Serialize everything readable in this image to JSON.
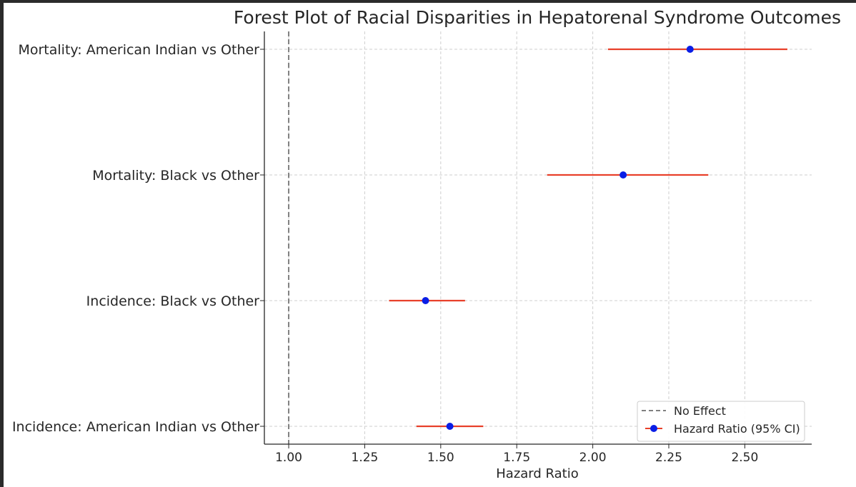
{
  "chart_data": {
    "type": "scatter",
    "title": "Forest Plot of Racial Disparities in Hepatorenal Syndrome Outcomes",
    "xlabel": "Hazard Ratio",
    "ylabel": "",
    "xlim": [
      0.92,
      2.72
    ],
    "xticks": [
      "1.00",
      "1.25",
      "1.50",
      "1.75",
      "2.00",
      "2.25",
      "2.50"
    ],
    "xtick_values": [
      1.0,
      1.25,
      1.5,
      1.75,
      2.0,
      2.25,
      2.5
    ],
    "reference_line": {
      "x": 1.0,
      "style": "dashed",
      "color": "#808080",
      "label": "No Effect"
    },
    "grid": true,
    "legend_position": "lower right",
    "point_color": "#0a1ee6",
    "ci_color": "#e8402a",
    "series": [
      {
        "name": "Hazard Ratio (95% CI)",
        "points": [
          {
            "label": "Mortality: American Indian vs Other",
            "hr": 2.32,
            "lower": 2.05,
            "upper": 2.64
          },
          {
            "label": "Mortality: Black vs Other",
            "hr": 2.1,
            "lower": 1.85,
            "upper": 2.38
          },
          {
            "label": "Incidence: Black vs Other",
            "hr": 1.45,
            "lower": 1.33,
            "upper": 1.58
          },
          {
            "label": "Incidence: American Indian vs Other",
            "hr": 1.53,
            "lower": 1.42,
            "upper": 1.64
          }
        ]
      }
    ]
  }
}
